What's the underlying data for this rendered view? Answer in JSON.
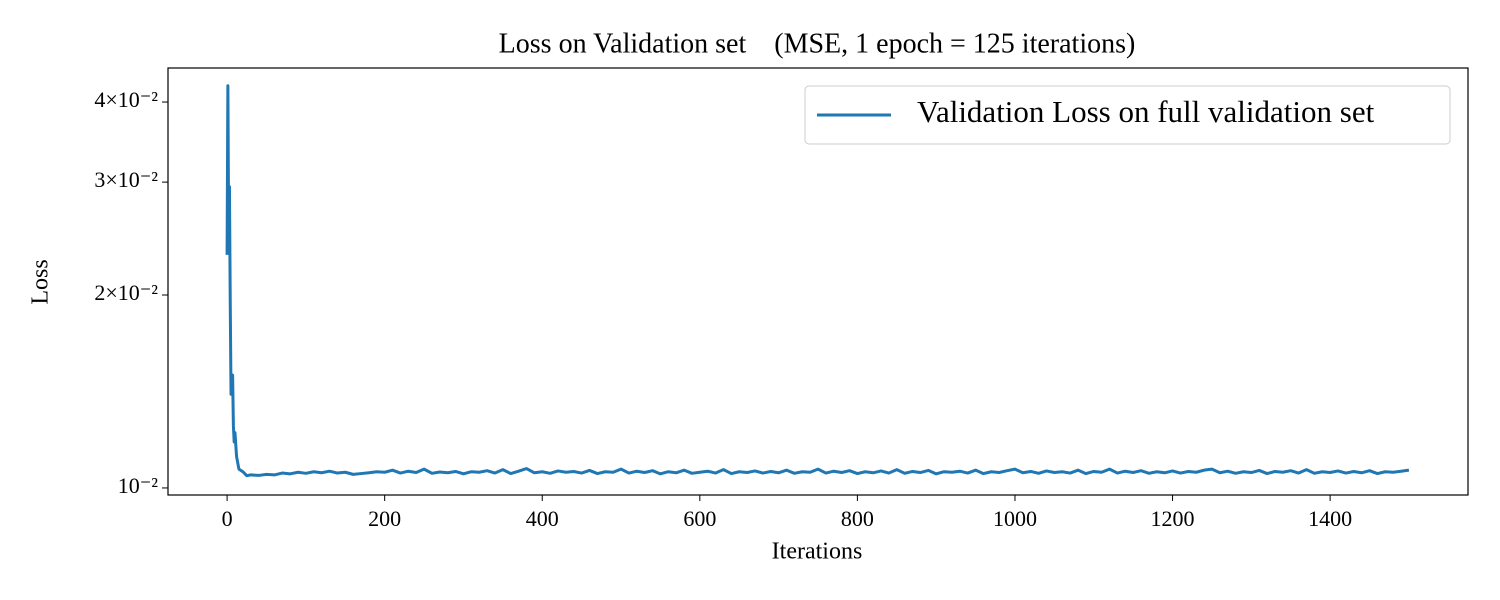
{
  "chart_data": {
    "type": "line",
    "title": "Loss on Validation set    (MSE, 1 epoch = 125 iterations)",
    "x_label": "Iterations",
    "y_label": "Loss",
    "x": [
      0,
      1,
      2,
      3,
      4,
      5,
      6,
      7,
      8,
      9,
      10,
      12,
      15,
      20,
      25,
      30,
      40,
      50,
      60,
      70,
      80,
      90,
      100,
      110,
      120,
      130,
      140,
      150,
      160,
      170,
      180,
      190,
      200,
      210,
      220,
      230,
      240,
      250,
      260,
      270,
      280,
      290,
      300,
      310,
      320,
      330,
      340,
      350,
      360,
      370,
      380,
      390,
      400,
      410,
      420,
      430,
      440,
      450,
      460,
      470,
      480,
      490,
      500,
      510,
      520,
      530,
      540,
      550,
      560,
      570,
      580,
      590,
      600,
      610,
      620,
      630,
      640,
      650,
      660,
      670,
      680,
      690,
      700,
      710,
      720,
      730,
      740,
      750,
      760,
      770,
      780,
      790,
      800,
      810,
      820,
      830,
      840,
      850,
      860,
      870,
      880,
      890,
      900,
      910,
      920,
      930,
      940,
      950,
      960,
      970,
      980,
      990,
      1000,
      1010,
      1020,
      1030,
      1040,
      1050,
      1060,
      1070,
      1080,
      1090,
      1100,
      1110,
      1120,
      1130,
      1140,
      1150,
      1160,
      1170,
      1180,
      1190,
      1200,
      1210,
      1220,
      1230,
      1240,
      1250,
      1260,
      1270,
      1280,
      1290,
      1300,
      1310,
      1320,
      1330,
      1340,
      1350,
      1360,
      1370,
      1380,
      1390,
      1400,
      1410,
      1420,
      1430,
      1440,
      1450,
      1460,
      1470,
      1480,
      1490,
      1500
    ],
    "series": [
      {
        "name": "Validation Loss on full validation set",
        "color": "#1f77b4",
        "values": [
          0.0231,
          0.0424,
          0.0245,
          0.0295,
          0.0195,
          0.014,
          0.0148,
          0.015,
          0.0125,
          0.0118,
          0.0122,
          0.0112,
          0.0107,
          0.0106,
          0.01045,
          0.01048,
          0.01046,
          0.0105,
          0.01048,
          0.01055,
          0.01052,
          0.01058,
          0.01054,
          0.0106,
          0.01056,
          0.01062,
          0.01055,
          0.01058,
          0.0105,
          0.01053,
          0.01056,
          0.0106,
          0.01058,
          0.01066,
          0.01055,
          0.01062,
          0.01057,
          0.0107,
          0.01054,
          0.01059,
          0.01056,
          0.01061,
          0.01052,
          0.0106,
          0.01058,
          0.01064,
          0.01055,
          0.01068,
          0.01053,
          0.01062,
          0.01072,
          0.01056,
          0.0106,
          0.01054,
          0.01063,
          0.01058,
          0.01061,
          0.01055,
          0.01065,
          0.01053,
          0.0106,
          0.01058,
          0.0107,
          0.01055,
          0.01062,
          0.01057,
          0.01064,
          0.01052,
          0.0106,
          0.01056,
          0.01066,
          0.01054,
          0.01058,
          0.01062,
          0.01055,
          0.01068,
          0.01053,
          0.0106,
          0.01057,
          0.01063,
          0.01055,
          0.01061,
          0.01056,
          0.01066,
          0.01054,
          0.0106,
          0.01058,
          0.0107,
          0.01055,
          0.01062,
          0.01057,
          0.01064,
          0.01053,
          0.0106,
          0.01056,
          0.01063,
          0.01055,
          0.01068,
          0.01054,
          0.01061,
          0.01057,
          0.01065,
          0.01052,
          0.0106,
          0.01058,
          0.01062,
          0.01055,
          0.01066,
          0.01053,
          0.0106,
          0.01057,
          0.01064,
          0.0107,
          0.01056,
          0.01061,
          0.01054,
          0.01063,
          0.01057,
          0.0106,
          0.01055,
          0.01066,
          0.01053,
          0.01061,
          0.01058,
          0.0107,
          0.01055,
          0.01062,
          0.01057,
          0.01064,
          0.01054,
          0.0106,
          0.01056,
          0.01063,
          0.01055,
          0.01061,
          0.01058,
          0.01066,
          0.0107,
          0.01056,
          0.01062,
          0.01054,
          0.0106,
          0.01057,
          0.01065,
          0.01053,
          0.01061,
          0.01058,
          0.01064,
          0.01055,
          0.01068,
          0.01054,
          0.0106,
          0.01057,
          0.01063,
          0.01055,
          0.01061,
          0.01056,
          0.01064,
          0.01053,
          0.0106,
          0.01058,
          0.01062,
          0.01066
        ]
      }
    ],
    "xlim": [
      -75,
      1575
    ],
    "xticks": [
      0,
      200,
      400,
      600,
      800,
      1000,
      1200,
      1400
    ],
    "ylim": [
      0.00975,
      0.0452
    ],
    "ylog": true,
    "yticks": [
      {
        "value": 0.01,
        "label": "10⁻²"
      },
      {
        "value": 0.02,
        "label": "2×10⁻²"
      },
      {
        "value": 0.03,
        "label": "3×10⁻²"
      },
      {
        "value": 0.04,
        "label": "4×10⁻²"
      }
    ],
    "legend": "upper right"
  }
}
